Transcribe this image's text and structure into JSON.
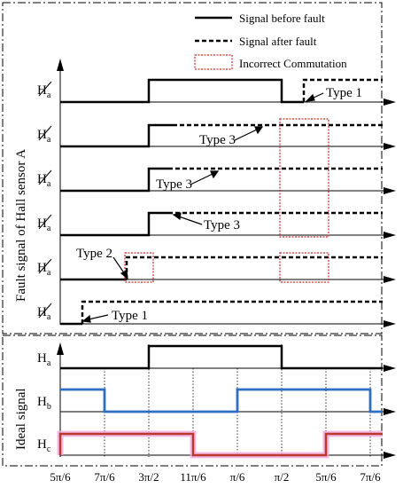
{
  "legend": {
    "before": "Signal before fault",
    "after": "Signal after fault",
    "incorrect": "Incorrect Commutation"
  },
  "fault_panel": {
    "ylabel": "Fault signal of Hall sensor A",
    "rows": [
      {
        "label": "H",
        "sub": "a",
        "annotation": "Type 1"
      },
      {
        "label": "H",
        "sub": "a",
        "annotation": "Type 3"
      },
      {
        "label": "H",
        "sub": "a",
        "annotation": "Type 3"
      },
      {
        "label": "H",
        "sub": "a",
        "annotation": "Type 3"
      },
      {
        "label": "H",
        "sub": "a",
        "annotation": "Type 2"
      },
      {
        "label": "H",
        "sub": "a",
        "annotation": "Type 1"
      }
    ]
  },
  "ideal_panel": {
    "ylabel": "Ideal signal",
    "rows": [
      {
        "label": "H",
        "sub": "a",
        "color": "#000000"
      },
      {
        "label": "H",
        "sub": "b",
        "color": "#2e6fc4"
      },
      {
        "label": "H",
        "sub": "c",
        "color": "#b83a2a"
      }
    ]
  },
  "x_ticks": [
    "5π/6",
    "7π/6",
    "3π/2",
    "11π/6",
    "π/6",
    "π/2",
    "5π/6",
    "7π/6"
  ],
  "colors": {
    "incorrect_box": "#d42a2a",
    "hb": "#2e6fc4",
    "hc": "#b83a2a",
    "hc_glow": "#f2a8e0"
  }
}
